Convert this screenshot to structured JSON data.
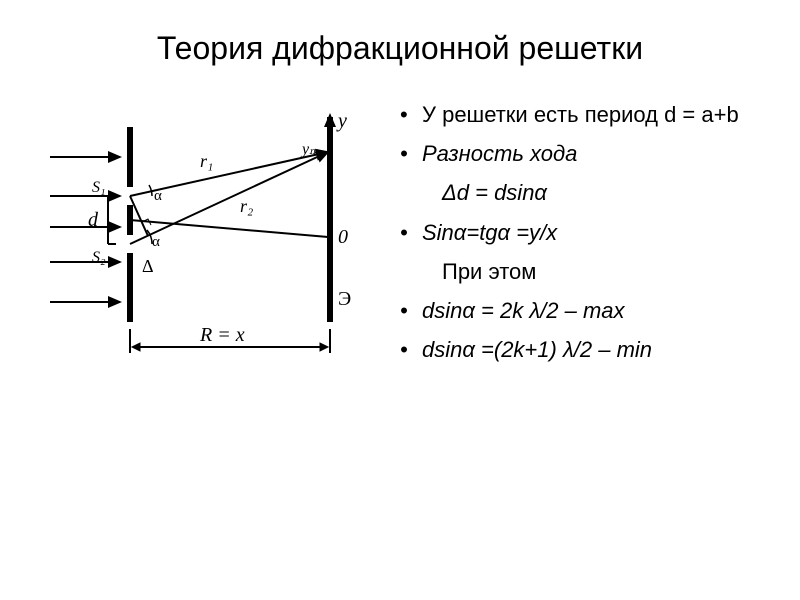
{
  "title": "Теория дифракционной решетки",
  "bullets": [
    {
      "text": "У решетки есть период d = a+b",
      "bulleted": true,
      "indented": false,
      "italic": false
    },
    {
      "text": "Разность хода",
      "bulleted": true,
      "indented": false,
      "italic": true
    },
    {
      "text": "Δd = dsinα",
      "bulleted": false,
      "indented": true,
      "italic": true
    },
    {
      "text": "Sinα=tgα =y/x",
      "bulleted": true,
      "indented": false,
      "italic": true
    },
    {
      "text": "При этом",
      "bulleted": false,
      "indented": true,
      "italic": false
    },
    {
      "text": "dsinα = 2k λ/2 – max",
      "bulleted": true,
      "indented": false,
      "italic": true
    },
    {
      "text": "dsinα =(2k+1) λ/2 – min",
      "bulleted": true,
      "indented": false,
      "italic": true
    }
  ],
  "diagram": {
    "labels": {
      "S1": "S₁",
      "S2": "S₂",
      "d": "d",
      "delta": "Δ",
      "alpha": "α",
      "r1": "r₁",
      "r2": "r₂",
      "y": "y",
      "ym": "yₘ",
      "O": "0",
      "E": "Э",
      "R": "R = x"
    },
    "colors": {
      "stroke": "#000000",
      "bg": "#ffffff",
      "text": "#000000"
    },
    "stroke_width": {
      "thin": 2,
      "thick": 6
    }
  }
}
